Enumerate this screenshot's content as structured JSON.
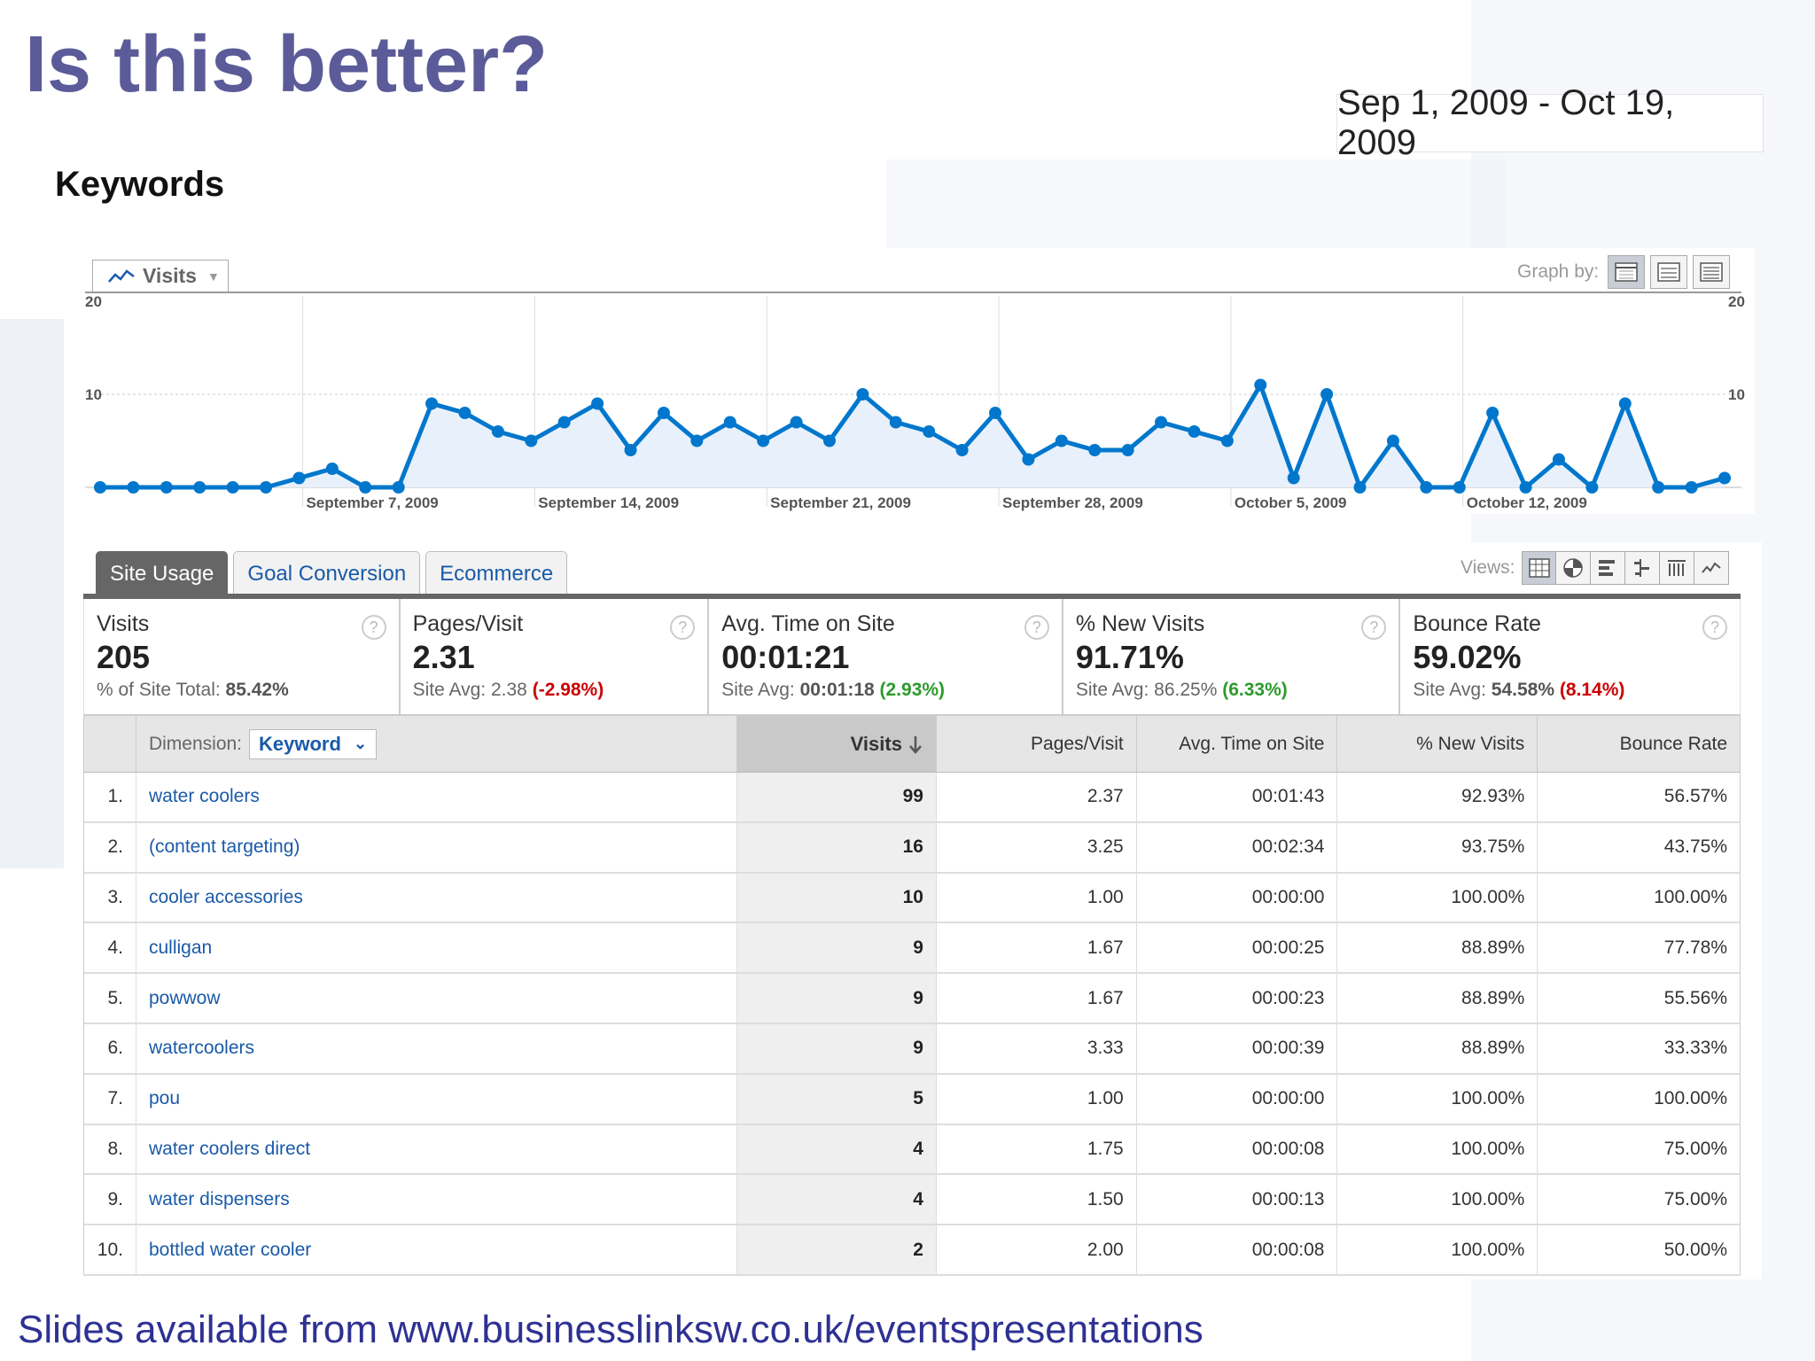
{
  "slide": {
    "title": "Is this better?",
    "date_range": "Sep 1, 2009 - Oct 19, 2009",
    "section_heading": "Keywords",
    "footer": "Slides available from www.businesslinksw.co.uk/eventspresentations"
  },
  "chart": {
    "metric_label": "Visits",
    "graph_by_label": "Graph by:"
  },
  "chart_data": {
    "type": "area",
    "series": [
      {
        "name": "Visits",
        "values": [
          0,
          0,
          0,
          0,
          0,
          0,
          1,
          2,
          0,
          0,
          9,
          8,
          6,
          5,
          7,
          9,
          4,
          8,
          5,
          7,
          5,
          7,
          5,
          10,
          7,
          6,
          4,
          8,
          3,
          5,
          4,
          4,
          7,
          6,
          5,
          11,
          1,
          10,
          0,
          5,
          0,
          0,
          8,
          0,
          3,
          0,
          9,
          0,
          0,
          1
        ]
      }
    ],
    "x_labels": [
      "September 7, 2009",
      "September 14, 2009",
      "September 21, 2009",
      "September 28, 2009",
      "October 5, 2009",
      "October 12, 2009"
    ],
    "y_ticks": [
      "20",
      "10"
    ],
    "ylim": [
      0,
      20
    ],
    "colors": {
      "line": "#0077cc",
      "fill": "#e8f1fb"
    }
  },
  "tabs": [
    "Site Usage",
    "Goal Conversion",
    "Ecommerce"
  ],
  "views_label": "Views:",
  "summary": [
    {
      "label": "Visits",
      "value": "205",
      "sub_label": "% of Site Total:",
      "sub_value": "85.42%"
    },
    {
      "label": "Pages/Visit",
      "value": "2.31",
      "sub_label": "Site Avg:",
      "sub_value": "2.38",
      "change": "(-2.98%)"
    },
    {
      "label": "Avg. Time on Site",
      "value": "00:01:21",
      "sub_label": "Site Avg:",
      "sub_value": "00:01:18",
      "change": "(2.93%)"
    },
    {
      "label": "% New Visits",
      "value": "91.71%",
      "sub_label": "Site Avg:",
      "sub_value": "86.25%",
      "change": "(6.33%)"
    },
    {
      "label": "Bounce Rate",
      "value": "59.02%",
      "sub_label": "Site Avg:",
      "sub_value": "54.58%",
      "change": "(8.14%)"
    }
  ],
  "table": {
    "dimension_label": "Dimension:",
    "dimension_value": "Keyword",
    "columns": [
      "Visits",
      "Pages/Visit",
      "Avg. Time on Site",
      "% New Visits",
      "Bounce Rate"
    ],
    "rows": [
      {
        "index": "1.",
        "keyword": "water coolers",
        "visits": "99",
        "pages_visit": "2.37",
        "avg_time": "00:01:43",
        "new_visits": "92.93%",
        "bounce_rate": "56.57%"
      },
      {
        "index": "2.",
        "keyword": "(content targeting)",
        "visits": "16",
        "pages_visit": "3.25",
        "avg_time": "00:02:34",
        "new_visits": "93.75%",
        "bounce_rate": "43.75%"
      },
      {
        "index": "3.",
        "keyword": "cooler accessories",
        "visits": "10",
        "pages_visit": "1.00",
        "avg_time": "00:00:00",
        "new_visits": "100.00%",
        "bounce_rate": "100.00%"
      },
      {
        "index": "4.",
        "keyword": "culligan",
        "visits": "9",
        "pages_visit": "1.67",
        "avg_time": "00:00:25",
        "new_visits": "88.89%",
        "bounce_rate": "77.78%"
      },
      {
        "index": "5.",
        "keyword": "powwow",
        "visits": "9",
        "pages_visit": "1.67",
        "avg_time": "00:00:23",
        "new_visits": "88.89%",
        "bounce_rate": "55.56%"
      },
      {
        "index": "6.",
        "keyword": "watercoolers",
        "visits": "9",
        "pages_visit": "3.33",
        "avg_time": "00:00:39",
        "new_visits": "88.89%",
        "bounce_rate": "33.33%"
      },
      {
        "index": "7.",
        "keyword": "pou",
        "visits": "5",
        "pages_visit": "1.00",
        "avg_time": "00:00:00",
        "new_visits": "100.00%",
        "bounce_rate": "100.00%"
      },
      {
        "index": "8.",
        "keyword": "water coolers direct",
        "visits": "4",
        "pages_visit": "1.75",
        "avg_time": "00:00:08",
        "new_visits": "100.00%",
        "bounce_rate": "75.00%"
      },
      {
        "index": "9.",
        "keyword": "water dispensers",
        "visits": "4",
        "pages_visit": "1.50",
        "avg_time": "00:00:13",
        "new_visits": "100.00%",
        "bounce_rate": "75.00%"
      },
      {
        "index": "10.",
        "keyword": "bottled water cooler",
        "visits": "2",
        "pages_visit": "2.00",
        "avg_time": "00:00:08",
        "new_visits": "100.00%",
        "bounce_rate": "50.00%"
      }
    ]
  }
}
